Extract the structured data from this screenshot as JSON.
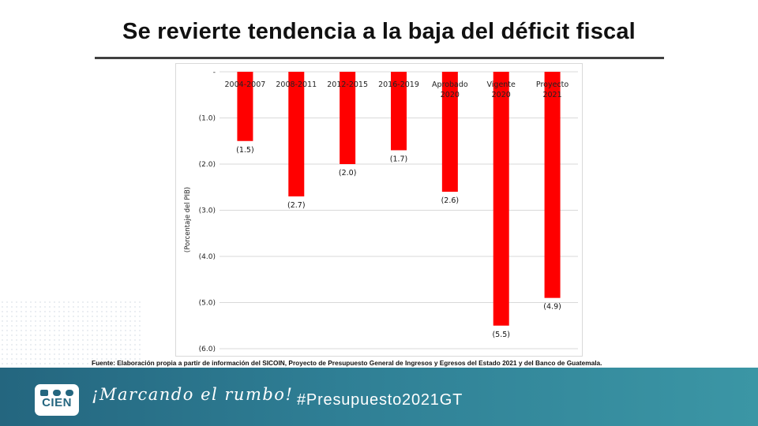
{
  "page": {
    "title": "Se revierte tendencia a la baja del déficit fiscal",
    "source": "Fuente: Elaboración propia a partir de información del SICOIN, Proyecto de Presupuesto General de Ingresos y Egresos del Estado 2021 y del Banco de Guatemala.",
    "slogan": "¡Marcando el rumbo!",
    "hashtag": "#Presupuesto2021GT",
    "logo_text": "CIEN"
  },
  "colors": {
    "bar": "#ff0000",
    "footer": "#2f7f95",
    "grid": "#d9d9d9"
  },
  "chart_data": {
    "type": "bar",
    "title": "",
    "xlabel": "",
    "ylabel": "(Porcentaje del PIB)",
    "categories": [
      [
        "2004-2007"
      ],
      [
        "2008-2011"
      ],
      [
        "2012-2015"
      ],
      [
        "2016-2019"
      ],
      [
        "Aprobado",
        "2020"
      ],
      [
        "Vigente",
        "2020"
      ],
      [
        "Proyecto",
        "2021"
      ]
    ],
    "values": [
      -1.5,
      -2.7,
      -2.0,
      -1.7,
      -2.6,
      -5.5,
      -4.9
    ],
    "value_labels": [
      "(1.5)",
      "(2.7)",
      "(2.0)",
      "(1.7)",
      "(2.6)",
      "(5.5)",
      "(4.9)"
    ],
    "ylim": [
      -6.0,
      0
    ],
    "yticks": [
      0,
      -1,
      -2,
      -3,
      -4,
      -5,
      -6
    ],
    "ytick_labels": [
      "-",
      "(1.0)",
      "(2.0)",
      "(3.0)",
      "(4.0)",
      "(5.0)",
      "(6.0)"
    ],
    "grid": true,
    "legend": "none"
  }
}
